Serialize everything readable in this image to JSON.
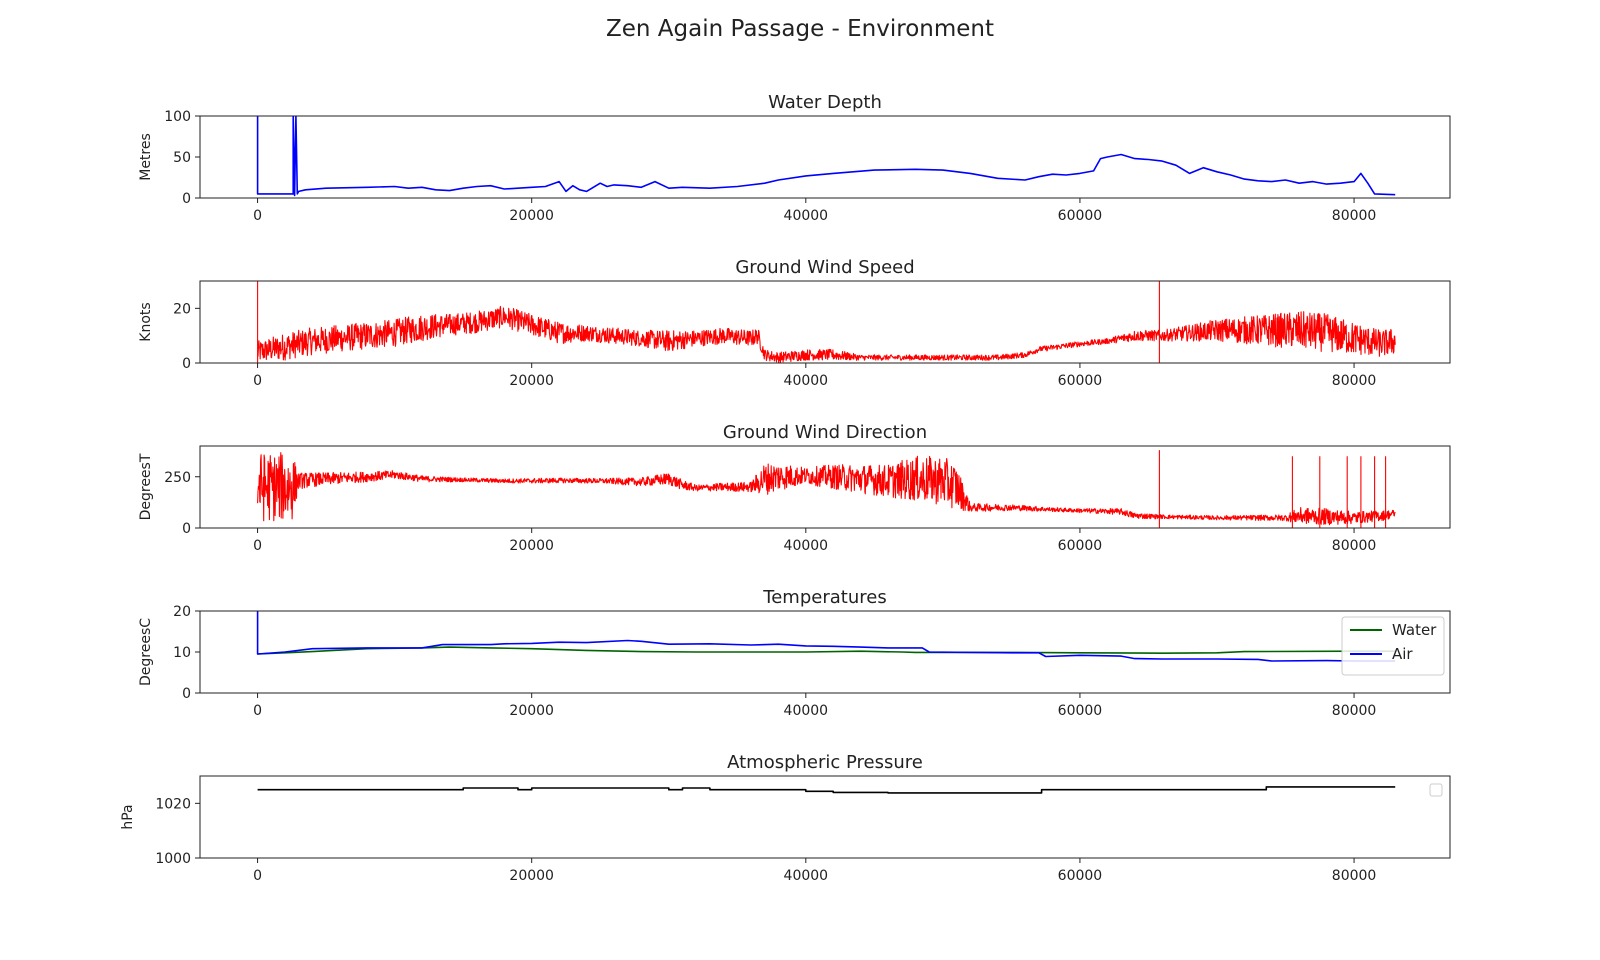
{
  "figure": {
    "title": "Zen Again Passage - Environment"
  },
  "chart_data": [
    {
      "type": "line",
      "title": "Water Depth",
      "xlabel": "",
      "ylabel": "Metres",
      "xlim": [
        -4200,
        87000
      ],
      "ylim": [
        0,
        100
      ],
      "xticks": [
        0,
        20000,
        40000,
        60000,
        80000
      ],
      "yticks": [
        0,
        50,
        100
      ],
      "grid": false,
      "series": [
        {
          "color": "#0000ff",
          "x": [
            0,
            0,
            0,
            2600,
            2600,
            2700,
            2800,
            2900,
            3000,
            3500,
            5000,
            8000,
            10000,
            11000,
            12000,
            13000,
            14000,
            15000,
            16000,
            17000,
            18000,
            19000,
            20000,
            21000,
            22000,
            22500,
            23000,
            23500,
            24000,
            25000,
            25500,
            26000,
            27000,
            28000,
            29000,
            30000,
            31000,
            33000,
            35000,
            37000,
            38000,
            40000,
            42000,
            45000,
            48000,
            50000,
            52000,
            54000,
            56000,
            57000,
            58000,
            59000,
            60000,
            61000,
            61500,
            62000,
            63000,
            64000,
            65000,
            66000,
            67000,
            68000,
            69000,
            70000,
            71000,
            72000,
            73000,
            74000,
            75000,
            76000,
            77000,
            78000,
            79000,
            80000,
            80500,
            81000,
            81500,
            83000
          ],
          "y": [
            100,
            5,
            5,
            5,
            100,
            3,
            100,
            5,
            8,
            10,
            12,
            13,
            14,
            12,
            13,
            10,
            9,
            12,
            14,
            15,
            11,
            12,
            13,
            14,
            20,
            8,
            15,
            10,
            8,
            18,
            14,
            16,
            15,
            13,
            20,
            12,
            13,
            12,
            14,
            18,
            22,
            27,
            30,
            34,
            35,
            34,
            30,
            24,
            22,
            26,
            29,
            28,
            30,
            33,
            48,
            50,
            53,
            48,
            47,
            45,
            40,
            30,
            37,
            32,
            28,
            23,
            21,
            20,
            22,
            18,
            20,
            17,
            18,
            20,
            30,
            18,
            5,
            4
          ]
        }
      ]
    },
    {
      "type": "line",
      "title": "Ground Wind Speed",
      "xlabel": "",
      "ylabel": "Knots",
      "xlim": [
        -4200,
        87000
      ],
      "ylim": [
        0,
        30
      ],
      "xticks": [
        0,
        20000,
        40000,
        60000,
        80000
      ],
      "yticks": [
        0,
        20
      ],
      "grid": false,
      "series": [
        {
          "color": "#ff0000",
          "noisy": true,
          "x": [
            0,
            2000,
            4000,
            6000,
            8000,
            10000,
            12000,
            14000,
            16000,
            17000,
            18000,
            20000,
            22000,
            24000,
            26000,
            28000,
            30000,
            32000,
            34000,
            36000,
            36500,
            37000,
            38000,
            40000,
            42000,
            44000,
            46000,
            48000,
            50000,
            52000,
            54000,
            56000,
            57000,
            60000,
            62000,
            64000,
            66000,
            68000,
            70000,
            72000,
            74000,
            76000,
            78000,
            80000,
            82000,
            83000
          ],
          "y": [
            4,
            6,
            8,
            9,
            10,
            11,
            13,
            14,
            15,
            16,
            17,
            14,
            11,
            11,
            10,
            9,
            8,
            9,
            10,
            9,
            10,
            3,
            2,
            3,
            3,
            2,
            2,
            2,
            2,
            2,
            2,
            3,
            5,
            7,
            8,
            10,
            10,
            11,
            12,
            12,
            12,
            12,
            11,
            9,
            7,
            8
          ],
          "amp": [
            4,
            5,
            5,
            5,
            5,
            5,
            5,
            4,
            4,
            4,
            4,
            4,
            4,
            3,
            3,
            3,
            4,
            3,
            3,
            3,
            3,
            2,
            2,
            2,
            2,
            1,
            1,
            1,
            1,
            1,
            1,
            1,
            1,
            1,
            1,
            2,
            2,
            3,
            4,
            5,
            6,
            7,
            7,
            6,
            5,
            5
          ],
          "spikes": [
            [
              0,
              30
            ],
            [
              65800,
              30
            ]
          ]
        }
      ]
    },
    {
      "type": "line",
      "title": "Ground Wind Direction",
      "xlabel": "",
      "ylabel": "DegreesT",
      "xlim": [
        -4200,
        87000
      ],
      "ylim": [
        0,
        400
      ],
      "xticks": [
        0,
        20000,
        40000,
        60000,
        80000
      ],
      "yticks": [
        0,
        250
      ],
      "grid": false,
      "series": [
        {
          "color": "#ff0000",
          "noisy": true,
          "x": [
            0,
            2500,
            3000,
            5000,
            8000,
            10000,
            12000,
            15000,
            18000,
            20000,
            22000,
            25000,
            28000,
            30000,
            31000,
            32000,
            34000,
            36000,
            37000,
            38000,
            40000,
            42000,
            44000,
            46000,
            48000,
            50000,
            51000,
            52000,
            55000,
            58000,
            60000,
            63000,
            64000,
            66000,
            70000,
            75000,
            76000,
            78000,
            80000,
            82000,
            83000
          ],
          "y": [
            200,
            200,
            230,
            240,
            250,
            260,
            240,
            235,
            230,
            230,
            232,
            230,
            225,
            240,
            210,
            195,
            200,
            200,
            240,
            250,
            255,
            250,
            240,
            230,
            240,
            230,
            200,
            100,
            100,
            90,
            85,
            80,
            60,
            55,
            50,
            50,
            60,
            55,
            50,
            60,
            70
          ],
          "amp": [
            170,
            170,
            40,
            30,
            25,
            20,
            15,
            10,
            10,
            12,
            12,
            12,
            20,
            30,
            25,
            15,
            20,
            25,
            80,
            70,
            40,
            60,
            70,
            80,
            110,
            120,
            110,
            20,
            15,
            10,
            10,
            15,
            15,
            10,
            10,
            15,
            40,
            40,
            30,
            25,
            20
          ],
          "spikes": [
            [
              65800,
              380
            ],
            [
              75500,
              350
            ],
            [
              77500,
              350
            ],
            [
              79500,
              350
            ],
            [
              80500,
              350
            ],
            [
              81500,
              350
            ],
            [
              82300,
              350
            ]
          ]
        }
      ]
    },
    {
      "type": "line",
      "title": "Temperatures",
      "xlabel": "",
      "ylabel": "DegreesC",
      "xlim": [
        -4200,
        87000
      ],
      "ylim": [
        0,
        20
      ],
      "xticks": [
        0,
        20000,
        40000,
        60000,
        80000
      ],
      "yticks": [
        0,
        10,
        20
      ],
      "grid": false,
      "legend": "top-right",
      "series": [
        {
          "name": "Water",
          "color": "#006400",
          "x": [
            0,
            2000,
            4000,
            5000,
            8000,
            12000,
            14000,
            17000,
            20000,
            24000,
            28000,
            32000,
            36000,
            40000,
            44000,
            47000,
            48000,
            50000,
            55000,
            60000,
            66000,
            70000,
            72000,
            80000,
            83000
          ],
          "y": [
            9.5,
            9.8,
            10.1,
            10.3,
            10.8,
            11.0,
            11.2,
            11.0,
            10.8,
            10.4,
            10.1,
            10.0,
            10.0,
            10.0,
            10.2,
            10.0,
            9.9,
            9.9,
            9.9,
            9.8,
            9.7,
            9.8,
            10.1,
            10.2,
            10.2
          ]
        },
        {
          "name": "Air",
          "color": "#0000ff",
          "x": [
            0,
            0,
            2000,
            4000,
            8000,
            12000,
            13500,
            17000,
            18000,
            20000,
            22000,
            24000,
            27000,
            28000,
            30000,
            33000,
            36000,
            38000,
            40000,
            42000,
            44000,
            46000,
            48500,
            49000,
            55000,
            57000,
            57500,
            60000,
            63000,
            64000,
            66000,
            70000,
            73000,
            74000,
            78000,
            80000,
            83000
          ],
          "y": [
            20,
            9.5,
            10,
            10.8,
            11,
            11,
            11.8,
            11.8,
            12.0,
            12.1,
            12.4,
            12.3,
            12.8,
            12.6,
            11.9,
            12.0,
            11.7,
            11.9,
            11.5,
            11.4,
            11.2,
            11.0,
            11.0,
            10.0,
            9.8,
            9.8,
            8.9,
            9.2,
            9.0,
            8.4,
            8.3,
            8.3,
            8.2,
            7.8,
            7.9,
            7.8,
            7.8
          ]
        }
      ]
    },
    {
      "type": "line",
      "title": "Atmospheric Pressure",
      "xlabel": "",
      "ylabel": "hPa",
      "xlim": [
        -4200,
        87000
      ],
      "ylim": [
        1000,
        1030
      ],
      "xticks": [
        0,
        20000,
        40000,
        60000,
        80000
      ],
      "yticks": [
        1000,
        1020
      ],
      "grid": false,
      "legend": "top-right",
      "series": [
        {
          "color": "#000000",
          "x": [
            0,
            15000,
            15000,
            19000,
            19000,
            20000,
            20000,
            30000,
            30000,
            31000,
            31000,
            33000,
            33000,
            40000,
            40000,
            42000,
            42000,
            46000,
            46000,
            57200,
            57200,
            73600,
            73600,
            83000
          ],
          "y": [
            1025,
            1025,
            1025.6,
            1025.6,
            1025,
            1025,
            1025.6,
            1025.6,
            1025,
            1025,
            1025.6,
            1025.6,
            1025,
            1025,
            1024.4,
            1024.4,
            1024,
            1024,
            1023.8,
            1023.8,
            1025,
            1025,
            1026,
            1026
          ]
        }
      ]
    }
  ]
}
